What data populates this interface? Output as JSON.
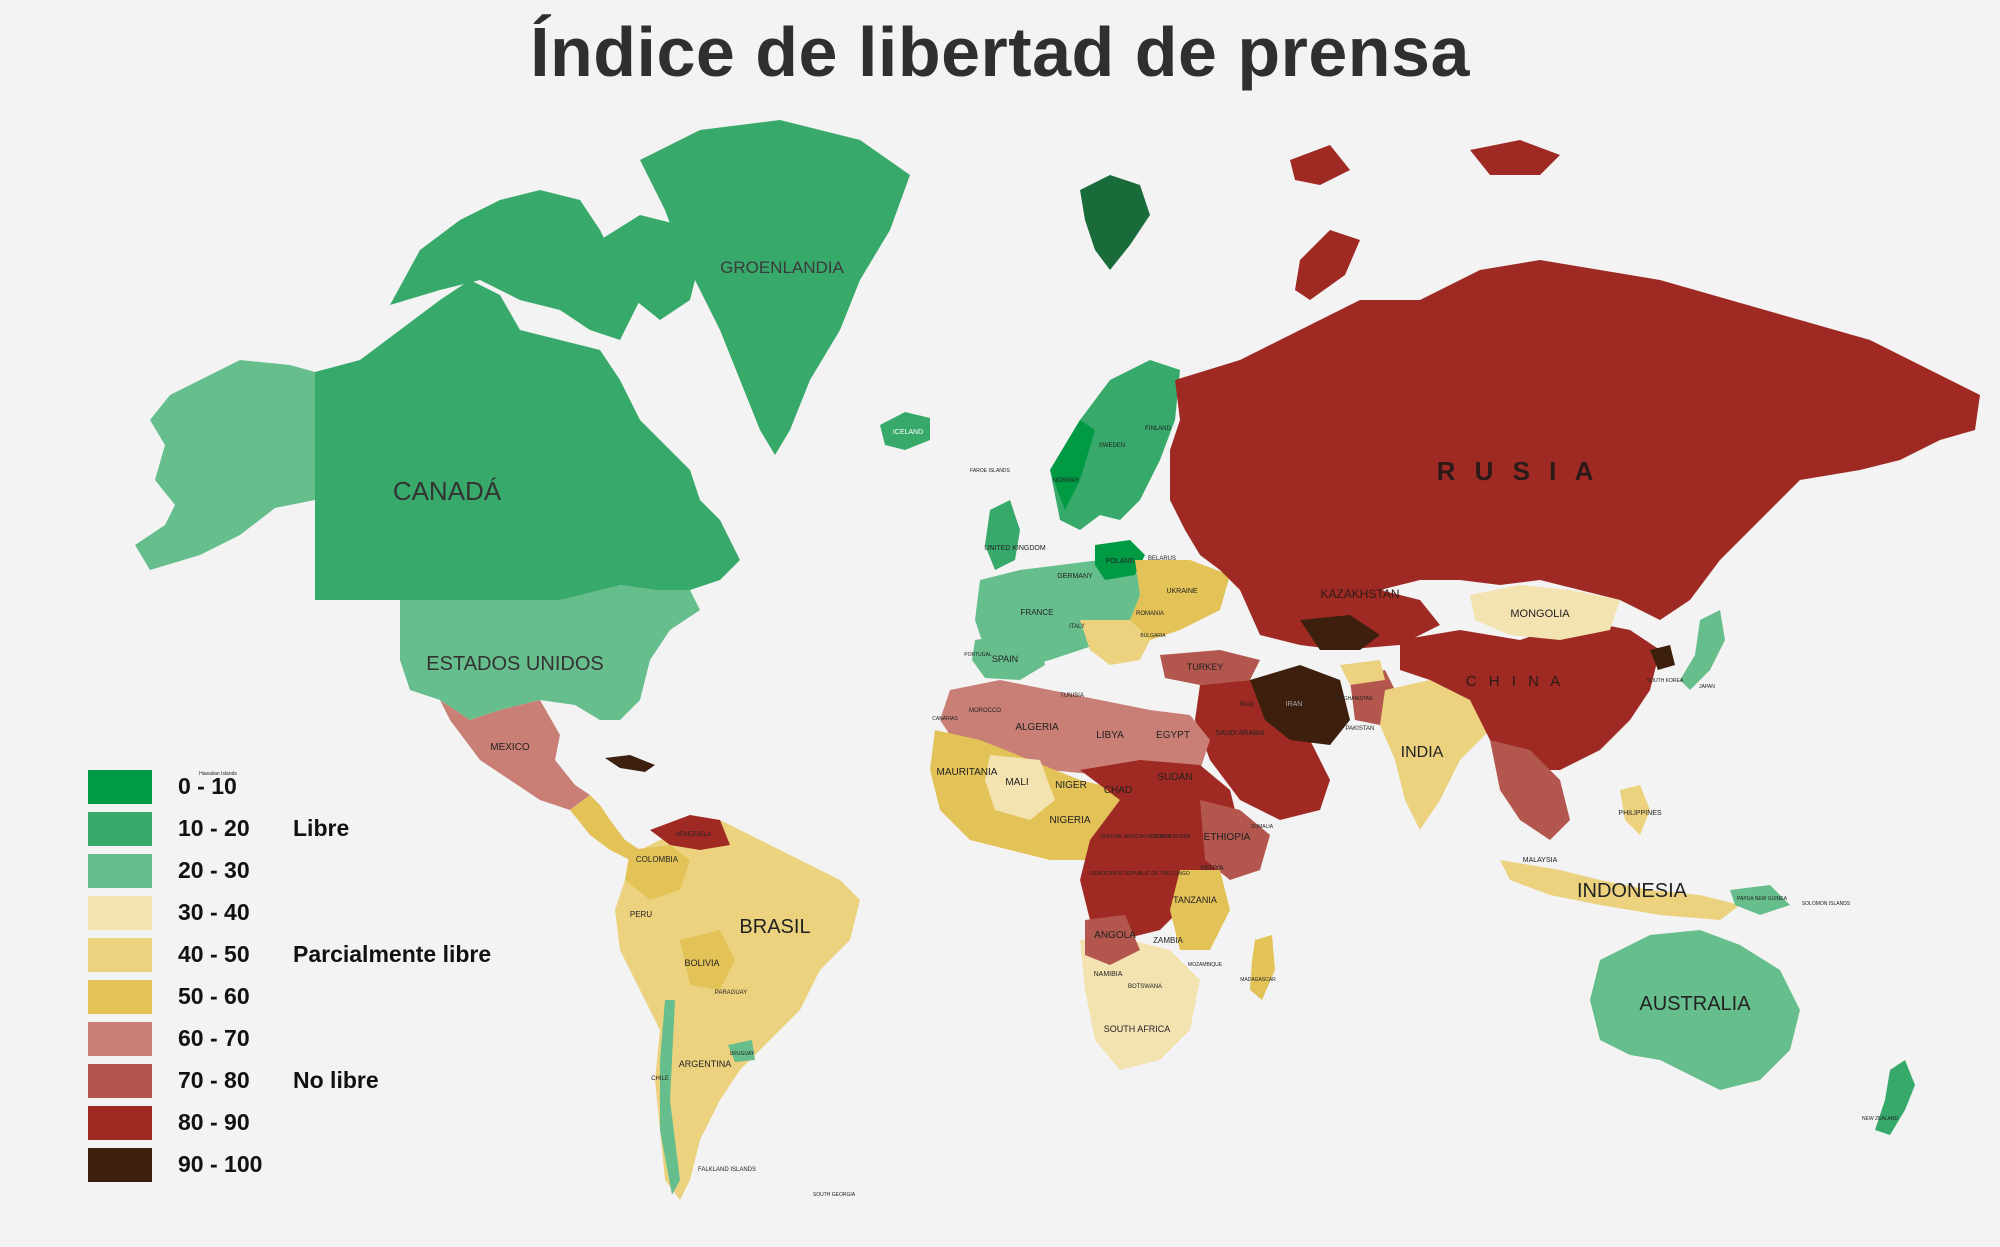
{
  "title": "Índice de libertad de prensa",
  "colors": {
    "background": "#f3f3f3",
    "c0_10": "#009a44",
    "c10_20": "#37a96a",
    "c20_30": "#67be8d",
    "c30_40": "#f3e3b1",
    "c40_50": "#ecd27f",
    "c50_60": "#e3c358",
    "c60_70": "#c97f75",
    "c70_80": "#b3564d",
    "c80_90": "#9e2a23",
    "c90_100": "#3c200d"
  },
  "legend": {
    "items": [
      {
        "label": "0 - 10",
        "color": "#009a44"
      },
      {
        "label": "10 - 20",
        "color": "#37a96a"
      },
      {
        "label": "20 - 30",
        "color": "#67be8d"
      },
      {
        "label": "30 - 40",
        "color": "#f3e3b1"
      },
      {
        "label": "40 - 50",
        "color": "#ecd27f"
      },
      {
        "label": "50 - 60",
        "color": "#e3c358"
      },
      {
        "label": "60 - 70",
        "color": "#c97f75"
      },
      {
        "label": "70 - 80",
        "color": "#b3564d"
      },
      {
        "label": "80 - 90",
        "color": "#9e2a23"
      },
      {
        "label": "90 - 100",
        "color": "#3c200d"
      }
    ],
    "categories": {
      "free": "Libre",
      "partly": "Parcialmente libre",
      "not_free": "No libre"
    }
  },
  "labels": {
    "groenlandia": "GROENLANDIA",
    "canada": "CANADÁ",
    "usa": "ESTADOS UNIDOS",
    "mexico": "MEXICO",
    "hawaii": "Hawaiian Islands",
    "iceland": "ICELAND",
    "faroe": "FAROE ISLANDS",
    "uk": "UNITED KINGDOM",
    "france": "FRANCE",
    "spain": "SPAIN",
    "portugal": "PORTUGAL",
    "italy": "ITALY",
    "germany": "GERMANY",
    "poland": "POLAND",
    "norway": "NORWAY",
    "sweden": "SWEDEN",
    "finland": "FINLAND",
    "belarus": "BELARUS",
    "ukraine": "UKRAINE",
    "romania": "ROMANIA",
    "bulgaria": "BULGARIA",
    "turkey": "TURKEY",
    "russia": "R U S I A",
    "kazakhstan": "KAZAKHSTAN",
    "mongolia": "MONGOLIA",
    "china": "C H I N A",
    "india": "INDIA",
    "pakistan": "PAKISTAN",
    "afghanistan": "AFGHANISTAN",
    "iran": "IRAN",
    "iraq": "IRAQ",
    "saudi": "SAUDI ARABIA",
    "south_korea": "SOUTH KOREA",
    "japan": "JAPAN",
    "philippines": "PHILIPPINES",
    "malaysia": "MALAYSIA",
    "indonesia": "INDONESIA",
    "papua": "PAPUA NEW GUINEA",
    "solomon": "SOLOMON ISLANDS",
    "australia": "AUSTRALIA",
    "new_zealand": "NEW ZEALAND",
    "morocco": "MOROCCO",
    "algeria": "ALGERIA",
    "tunisia": "TUNISIA",
    "libya": "LIBYA",
    "egypt": "EGYPT",
    "mauritania": "MAURITANIA",
    "mali": "MALI",
    "niger": "NIGER",
    "chad": "CHAD",
    "sudan": "SUDAN",
    "south_sudan": "SOUTH SUDAN",
    "ethiopia": "ETHIOPIA",
    "somalia": "SOMALIA",
    "nigeria": "NIGERIA",
    "car": "CENTRAL AFRICAN REPUBLIC",
    "drc": "DEMOCRATIC REPUBLIC OF THE CONGO",
    "kenya": "KENYA",
    "tanzania": "TANZANIA",
    "angola": "ANGOLA",
    "zambia": "ZAMBIA",
    "namibia": "NAMIBIA",
    "botswana": "BOTSWANA",
    "south_africa": "SOUTH AFRICA",
    "madagascar": "MADAGASCAR",
    "mozambique": "MOZAMBIQUE",
    "canarias": "CANARIAS",
    "colombia": "COLOMBIA",
    "venezuela": "VENEZUELA",
    "peru": "PERU",
    "brasil": "BRASIL",
    "bolivia": "BOLIVIA",
    "paraguay": "PARAGUAY",
    "uruguay": "URUGUAY",
    "argentina": "ARGENTINA",
    "chile": "CHILE",
    "falkland": "FALKLAND ISLANDS",
    "south_georgia": "SOUTH GEORGIA"
  }
}
